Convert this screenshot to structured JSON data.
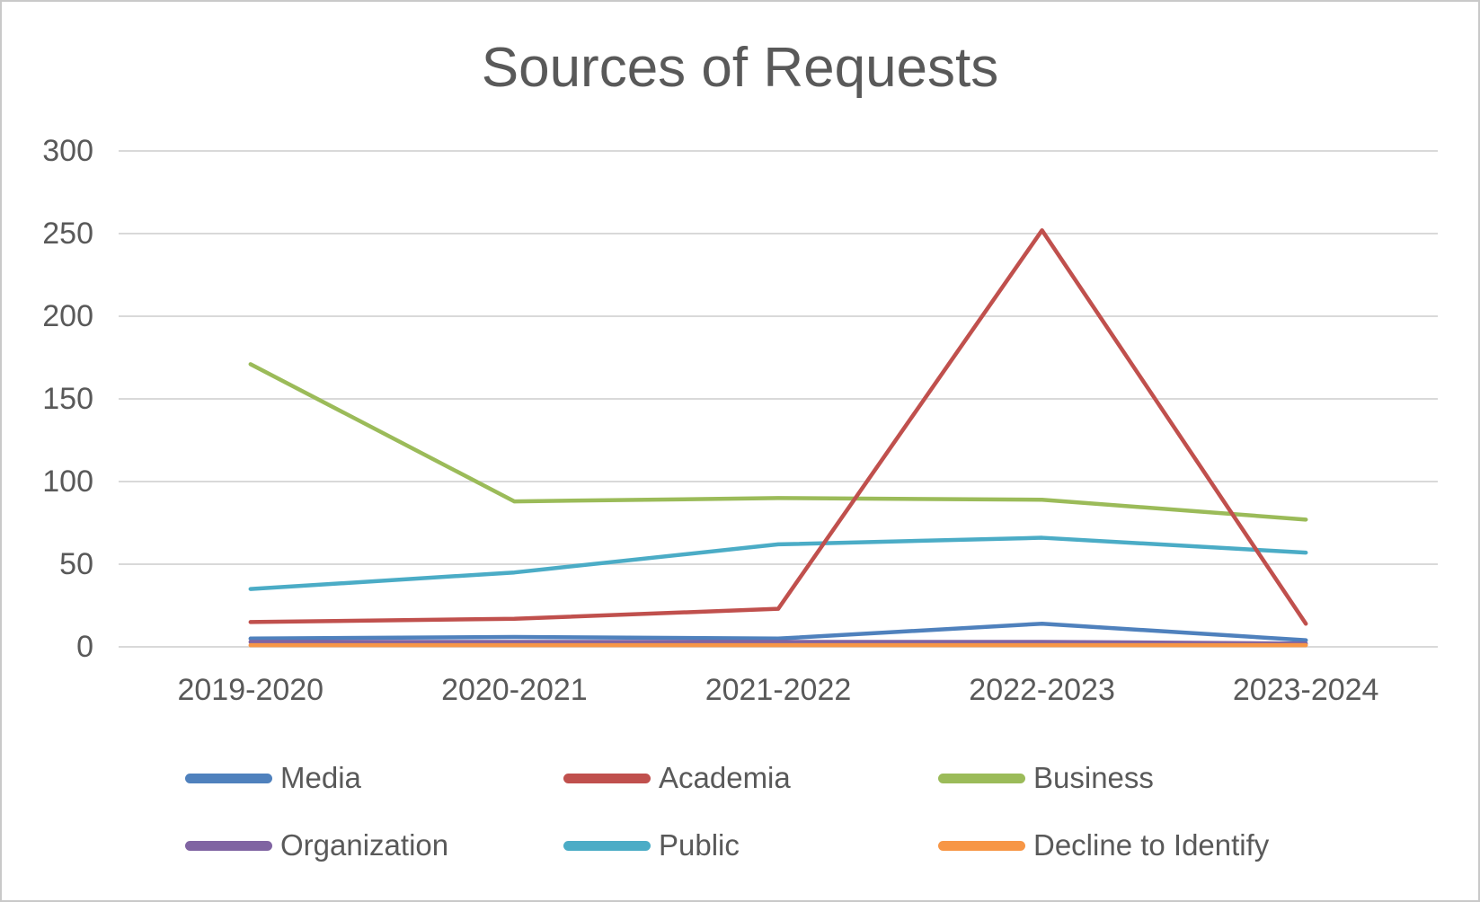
{
  "window": {
    "background_color": "#ffffff",
    "border_color": "#c9c9c9"
  },
  "chart_data": {
    "type": "line",
    "title": "Sources of Requests",
    "categories": [
      "2019-2020",
      "2020-2021",
      "2021-2022",
      "2022-2023",
      "2023-2024"
    ],
    "series": [
      {
        "name": "Media",
        "color": "#4F81BD",
        "values": [
          5,
          6,
          5,
          14,
          4
        ]
      },
      {
        "name": "Academia",
        "color": "#C0504D",
        "values": [
          15,
          17,
          23,
          252,
          14
        ]
      },
      {
        "name": "Business",
        "color": "#9BBB59",
        "values": [
          171,
          88,
          90,
          89,
          77
        ]
      },
      {
        "name": "Organization",
        "color": "#8064A2",
        "values": [
          3,
          3,
          3,
          3,
          2
        ]
      },
      {
        "name": "Public",
        "color": "#4BACC6",
        "values": [
          35,
          45,
          62,
          66,
          57
        ]
      },
      {
        "name": "Decline to Identify",
        "color": "#F79646",
        "values": [
          1,
          1,
          1,
          1,
          1
        ]
      }
    ],
    "ylim": [
      0,
      300
    ],
    "yticks": [
      300,
      250,
      200,
      150,
      100,
      50,
      0
    ],
    "xlabel": "",
    "ylabel": "",
    "grid": true,
    "grid_color": "#D9D9D9",
    "text_color": "#595959",
    "legend_position": "bottom",
    "draw_order": [
      "Business",
      "Media",
      "Organization",
      "Public",
      "Decline to Identify",
      "Academia"
    ]
  }
}
